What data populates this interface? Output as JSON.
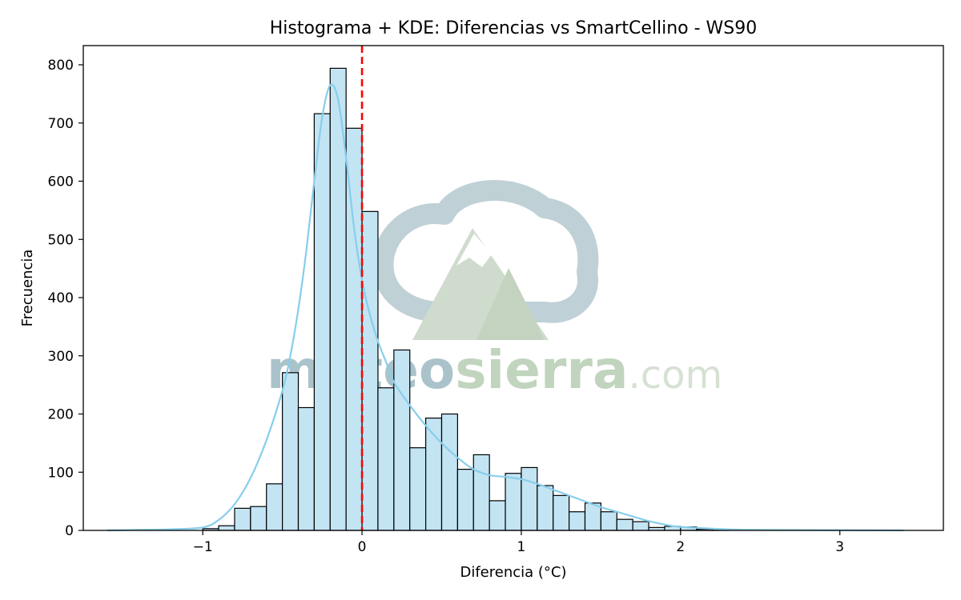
{
  "chart_data": {
    "type": "bar",
    "title": "Histograma + KDE: Diferencias vs SmartCellino - WS90",
    "xlabel": "Diferencia (°C)",
    "ylabel": "Frecuencia",
    "xlim": [
      -1.75,
      3.65
    ],
    "ylim": [
      0,
      833
    ],
    "xticks": [
      -1,
      0,
      1,
      2,
      3
    ],
    "xtick_labels": [
      "−1",
      "0",
      "1",
      "2",
      "3"
    ],
    "yticks": [
      0,
      100,
      200,
      300,
      400,
      500,
      600,
      700,
      800
    ],
    "ytick_labels": [
      "0",
      "100",
      "200",
      "300",
      "400",
      "500",
      "600",
      "700",
      "800"
    ],
    "bin_width": 0.1,
    "bins": [
      {
        "x0": -1.0,
        "count": 3
      },
      {
        "x0": -0.9,
        "count": 8
      },
      {
        "x0": -0.8,
        "count": 38
      },
      {
        "x0": -0.7,
        "count": 41
      },
      {
        "x0": -0.6,
        "count": 80
      },
      {
        "x0": -0.5,
        "count": 271
      },
      {
        "x0": -0.4,
        "count": 211
      },
      {
        "x0": -0.3,
        "count": 716
      },
      {
        "x0": -0.2,
        "count": 794
      },
      {
        "x0": -0.1,
        "count": 691
      },
      {
        "x0": 0.0,
        "count": 548
      },
      {
        "x0": 0.1,
        "count": 245
      },
      {
        "x0": 0.2,
        "count": 310
      },
      {
        "x0": 0.3,
        "count": 142
      },
      {
        "x0": 0.4,
        "count": 193
      },
      {
        "x0": 0.5,
        "count": 200
      },
      {
        "x0": 0.6,
        "count": 105
      },
      {
        "x0": 0.7,
        "count": 130
      },
      {
        "x0": 0.8,
        "count": 51
      },
      {
        "x0": 0.9,
        "count": 98
      },
      {
        "x0": 1.0,
        "count": 108
      },
      {
        "x0": 1.1,
        "count": 77
      },
      {
        "x0": 1.2,
        "count": 60
      },
      {
        "x0": 1.3,
        "count": 32
      },
      {
        "x0": 1.4,
        "count": 47
      },
      {
        "x0": 1.5,
        "count": 32
      },
      {
        "x0": 1.6,
        "count": 19
      },
      {
        "x0": 1.7,
        "count": 15
      },
      {
        "x0": 1.8,
        "count": 5
      },
      {
        "x0": 1.9,
        "count": 7
      },
      {
        "x0": 2.0,
        "count": 6
      },
      {
        "x0": 2.1,
        "count": 2
      },
      {
        "x0": 2.2,
        "count": 2
      }
    ],
    "kde": {
      "x": [
        -1.6,
        -1.4,
        -1.2,
        -1.0,
        -0.9,
        -0.8,
        -0.7,
        -0.6,
        -0.5,
        -0.45,
        -0.4,
        -0.35,
        -0.3,
        -0.25,
        -0.2,
        -0.15,
        -0.1,
        -0.05,
        0.0,
        0.05,
        0.1,
        0.15,
        0.2,
        0.3,
        0.4,
        0.5,
        0.6,
        0.7,
        0.8,
        0.9,
        1.0,
        1.1,
        1.2,
        1.3,
        1.4,
        1.5,
        1.6,
        1.7,
        1.8,
        1.9,
        2.0,
        2.2,
        2.4,
        2.8,
        3.4
      ],
      "y": [
        0,
        1,
        2,
        5,
        18,
        45,
        90,
        155,
        240,
        300,
        380,
        480,
        600,
        710,
        765,
        740,
        640,
        520,
        430,
        370,
        325,
        290,
        255,
        215,
        180,
        150,
        125,
        105,
        95,
        92,
        88,
        80,
        70,
        60,
        50,
        40,
        32,
        24,
        16,
        10,
        6,
        3,
        1,
        0.5,
        0
      ]
    },
    "reference_line": {
      "x": 0,
      "color": "#ff0000",
      "style": "dashed"
    },
    "colors": {
      "bar_fill": "#c3e4f3",
      "bar_edge": "#000000",
      "kde_line": "#87ceeb",
      "ref_line": "#ff0000"
    },
    "grid": false,
    "legend": "none"
  },
  "watermark": {
    "icon": "cloud-mountain-icon",
    "text_main_a": "meteo",
    "text_main_b": "sierra",
    "text_suffix": ".com",
    "color_a": "#9cb9c3",
    "color_b": "#b7cdb3"
  }
}
